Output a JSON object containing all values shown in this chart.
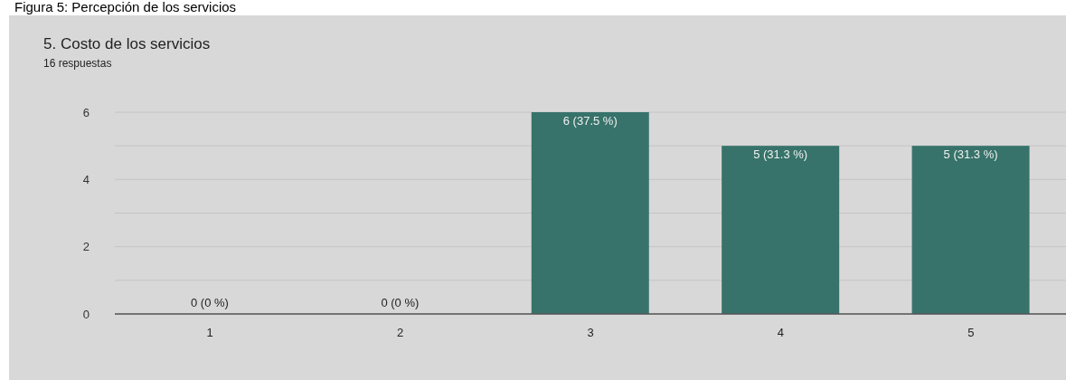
{
  "chart_data": {
    "type": "bar",
    "title": "5. Costo de los servicios",
    "subtitle": "16 respuestas",
    "annotations": [
      "Figura 5: Percepción de los servicios"
    ],
    "categories": [
      "1",
      "2",
      "3",
      "4",
      "5"
    ],
    "values": [
      0,
      0,
      6,
      5,
      5
    ],
    "value_labels": [
      "0 (0 %)",
      "0 (0 %)",
      "6 (37.5 %)",
      "5 (31.3 %)",
      "5 (31.3 %)"
    ],
    "color": "#37736a",
    "ylim": [
      0,
      6
    ],
    "yticks": [
      0,
      {
        "value": 1,
        "label": null
      },
      2,
      {
        "value": 3,
        "label": null
      },
      4,
      {
        "value": 5,
        "label": null
      },
      6
    ],
    "grid": "y"
  }
}
